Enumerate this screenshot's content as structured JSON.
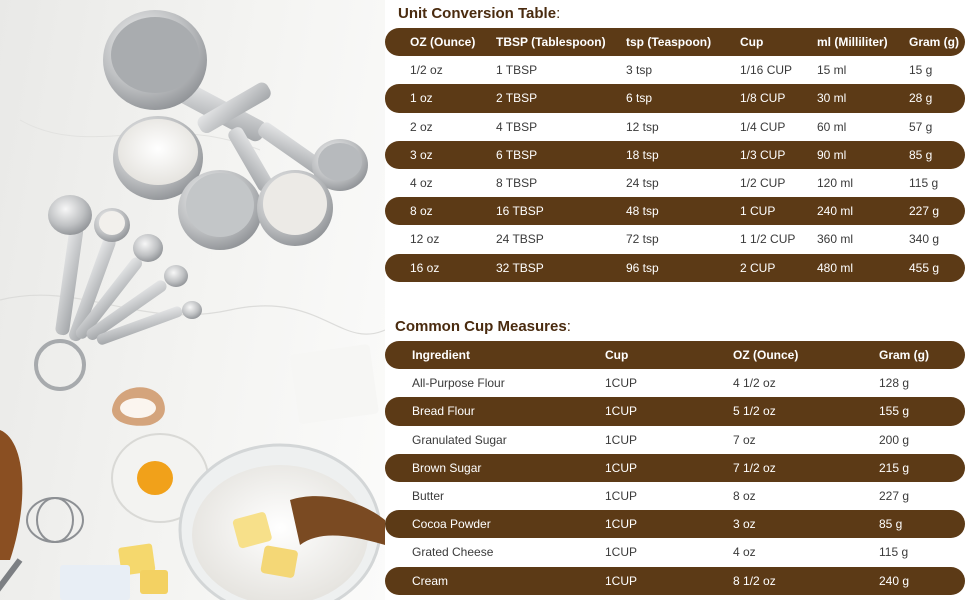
{
  "conversion": {
    "title": "Unit Conversion Table",
    "title_colon": ":",
    "headers": [
      "OZ (Ounce)",
      "TBSP (Tablespoon)",
      "tsp (Teaspoon)",
      "Cup",
      "ml (Milliliter)",
      "Gram (g)"
    ],
    "rows": [
      [
        "1/2 oz",
        "1 TBSP",
        "3 tsp",
        "1/16 CUP",
        "15 ml",
        "15 g"
      ],
      [
        "1 oz",
        "2 TBSP",
        "6 tsp",
        "1/8 CUP",
        "30 ml",
        "28 g"
      ],
      [
        "2 oz",
        "4 TBSP",
        "12 tsp",
        "1/4 CUP",
        "60 ml",
        "57 g"
      ],
      [
        "3 oz",
        "6 TBSP",
        "18 tsp",
        "1/3 CUP",
        "90 ml",
        "85 g"
      ],
      [
        "4 oz",
        "8 TBSP",
        "24 tsp",
        "1/2 CUP",
        "120 ml",
        "115 g"
      ],
      [
        "8 oz",
        "16 TBSP",
        "48 tsp",
        "1 CUP",
        "240 ml",
        "227 g"
      ],
      [
        "12 oz",
        "24 TBSP",
        "72 tsp",
        "1 1/2 CUP",
        "360 ml",
        "340 g"
      ],
      [
        "16 oz",
        "32 TBSP",
        "96 tsp",
        "2 CUP",
        "480 ml",
        "455 g"
      ]
    ]
  },
  "cup_measures": {
    "title": "Common Cup Measures",
    "title_colon": ":",
    "headers": [
      "Ingredient",
      "Cup",
      "OZ (Ounce)",
      "Gram (g)"
    ],
    "rows": [
      [
        "All-Purpose Flour",
        "1CUP",
        "4 1/2 oz",
        "128 g"
      ],
      [
        "Bread Flour",
        "1CUP",
        "5 1/2 oz",
        "155 g"
      ],
      [
        "Granulated Sugar",
        "1CUP",
        "7 oz",
        "200 g"
      ],
      [
        "Brown Sugar",
        "1CUP",
        "7 1/2 oz",
        "215 g"
      ],
      [
        "Butter",
        "1CUP",
        "8 oz",
        "227 g"
      ],
      [
        "Cocoa Powder",
        "1CUP",
        "3 oz",
        "85 g"
      ],
      [
        "Grated Cheese",
        "1CUP",
        "4 oz",
        "115 g"
      ],
      [
        "Cream",
        "1CUP",
        "8 1/2 oz",
        "240 g"
      ]
    ]
  },
  "colors": {
    "band": "#5c3a16",
    "title": "#4a2b0f"
  },
  "photo_label": "Stainless steel measuring cups and spoons with flour, sugar, egg yolk and butter"
}
